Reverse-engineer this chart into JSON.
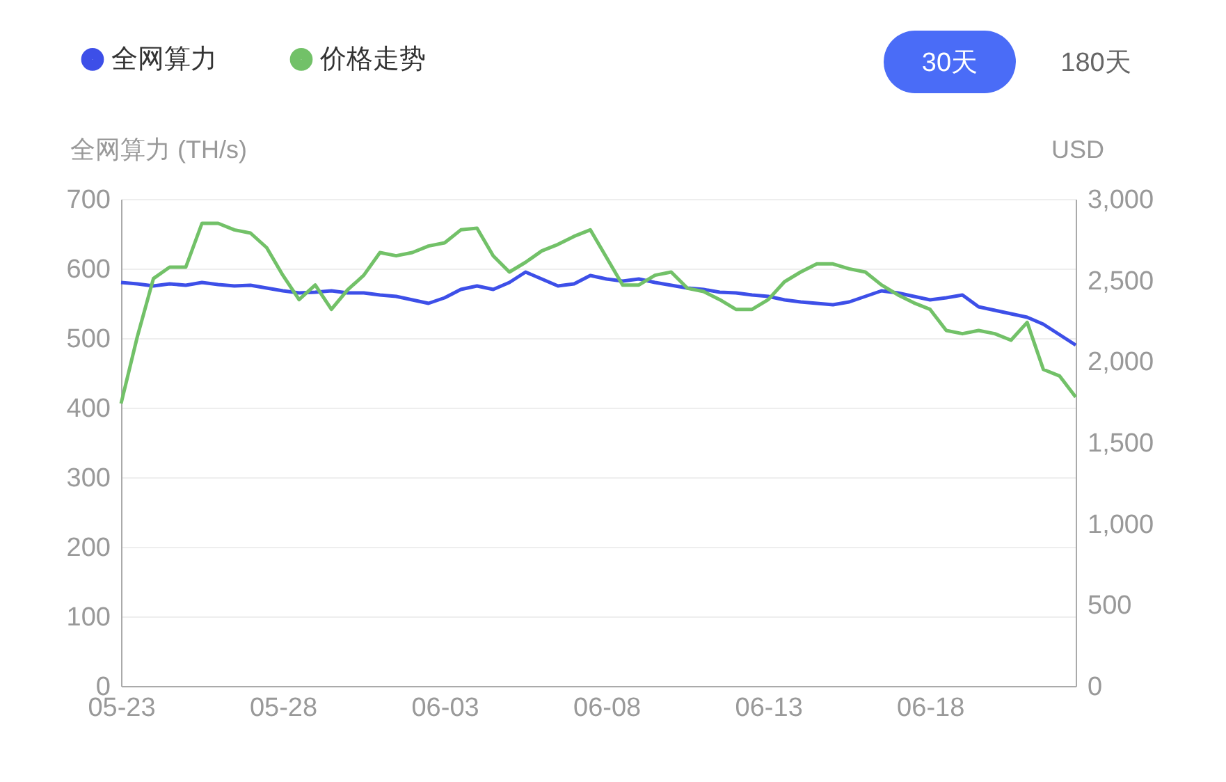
{
  "chart_data": {
    "type": "line",
    "categories": [
      "05-23",
      null,
      null,
      null,
      null,
      null,
      null,
      null,
      null,
      null,
      "05-28",
      null,
      null,
      null,
      null,
      null,
      null,
      null,
      null,
      null,
      "06-03",
      null,
      null,
      null,
      null,
      null,
      null,
      null,
      null,
      null,
      "06-08",
      null,
      null,
      null,
      null,
      null,
      null,
      null,
      null,
      null,
      "06-13",
      null,
      null,
      null,
      null,
      null,
      null,
      null,
      null,
      null,
      "06-18",
      null,
      null,
      null,
      null,
      null,
      null,
      null,
      null,
      null
    ],
    "ylabel": "全网算力 (TH/s)",
    "y2label": "USD",
    "ylim": [
      0,
      700
    ],
    "yticks": [
      0,
      100,
      200,
      300,
      400,
      500,
      600,
      700
    ],
    "y2lim": [
      0,
      3000
    ],
    "y2ticks": [
      0,
      500,
      {
        "value": 1000,
        "label": "1,000"
      },
      {
        "value": 1500,
        "label": "1,500"
      },
      {
        "value": 2000,
        "label": "2,000"
      },
      {
        "value": 2500,
        "label": "2,500"
      },
      {
        "value": 3000,
        "label": "3,000"
      }
    ],
    "grid": "y",
    "legend": "top left",
    "annotations": [
      "30天",
      "180天"
    ],
    "series": [
      {
        "name": "全网算力",
        "color": "#3d4fe8",
        "values": [
          580,
          578,
          575,
          578,
          576,
          580,
          577,
          575,
          576,
          572,
          568,
          565,
          566,
          568,
          565,
          565,
          562,
          560,
          555,
          550,
          558,
          570,
          575,
          570,
          580,
          595,
          585,
          575,
          578,
          590,
          585,
          582,
          585,
          580,
          576,
          572,
          570,
          566,
          565,
          562,
          560,
          555,
          552,
          550,
          548,
          552,
          560,
          568,
          565,
          560,
          555,
          558,
          562,
          545,
          540,
          535,
          530,
          520,
          505,
          490
        ]
      },
      {
        "name": "价格走势",
        "color": "#72c168",
        "axis": "y2",
        "values": [
          1740,
          2150,
          2510,
          2580,
          2580,
          2850,
          2850,
          2810,
          2790,
          2700,
          2530,
          2380,
          2470,
          2320,
          2440,
          2530,
          2670,
          2650,
          2670,
          2710,
          2730,
          2810,
          2820,
          2650,
          2550,
          2610,
          2680,
          2720,
          2770,
          2810,
          2640,
          2470,
          2470,
          2530,
          2550,
          2450,
          2430,
          2380,
          2320,
          2320,
          2380,
          2490,
          2550,
          2600,
          2600,
          2570,
          2550,
          2470,
          2410,
          2360,
          2320,
          2190,
          2170,
          2190,
          2170,
          2130,
          2240,
          1950,
          1910,
          1780
        ]
      }
    ]
  }
}
